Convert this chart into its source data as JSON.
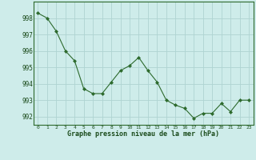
{
  "x": [
    0,
    1,
    2,
    3,
    4,
    5,
    6,
    7,
    8,
    9,
    10,
    11,
    12,
    13,
    14,
    15,
    16,
    17,
    18,
    19,
    20,
    21,
    22,
    23
  ],
  "y": [
    998.3,
    998.0,
    997.2,
    996.0,
    995.4,
    993.7,
    993.4,
    993.4,
    994.1,
    994.8,
    995.1,
    995.6,
    994.8,
    994.1,
    993.0,
    992.7,
    992.5,
    991.9,
    992.2,
    992.2,
    992.8,
    992.3,
    993.0,
    993.0
  ],
  "line_color": "#2d6a2d",
  "marker_color": "#2d6a2d",
  "bg_color": "#ceecea",
  "grid_color": "#aed4d2",
  "xlabel": "Graphe pression niveau de la mer (hPa)",
  "xlabel_color": "#1a4a1a",
  "tick_color": "#1a4a1a",
  "ylim_min": 991.5,
  "ylim_max": 999.0,
  "yticks": [
    992,
    993,
    994,
    995,
    996,
    997,
    998
  ],
  "xticks": [
    0,
    1,
    2,
    3,
    4,
    5,
    6,
    7,
    8,
    9,
    10,
    11,
    12,
    13,
    14,
    15,
    16,
    17,
    18,
    19,
    20,
    21,
    22,
    23
  ]
}
